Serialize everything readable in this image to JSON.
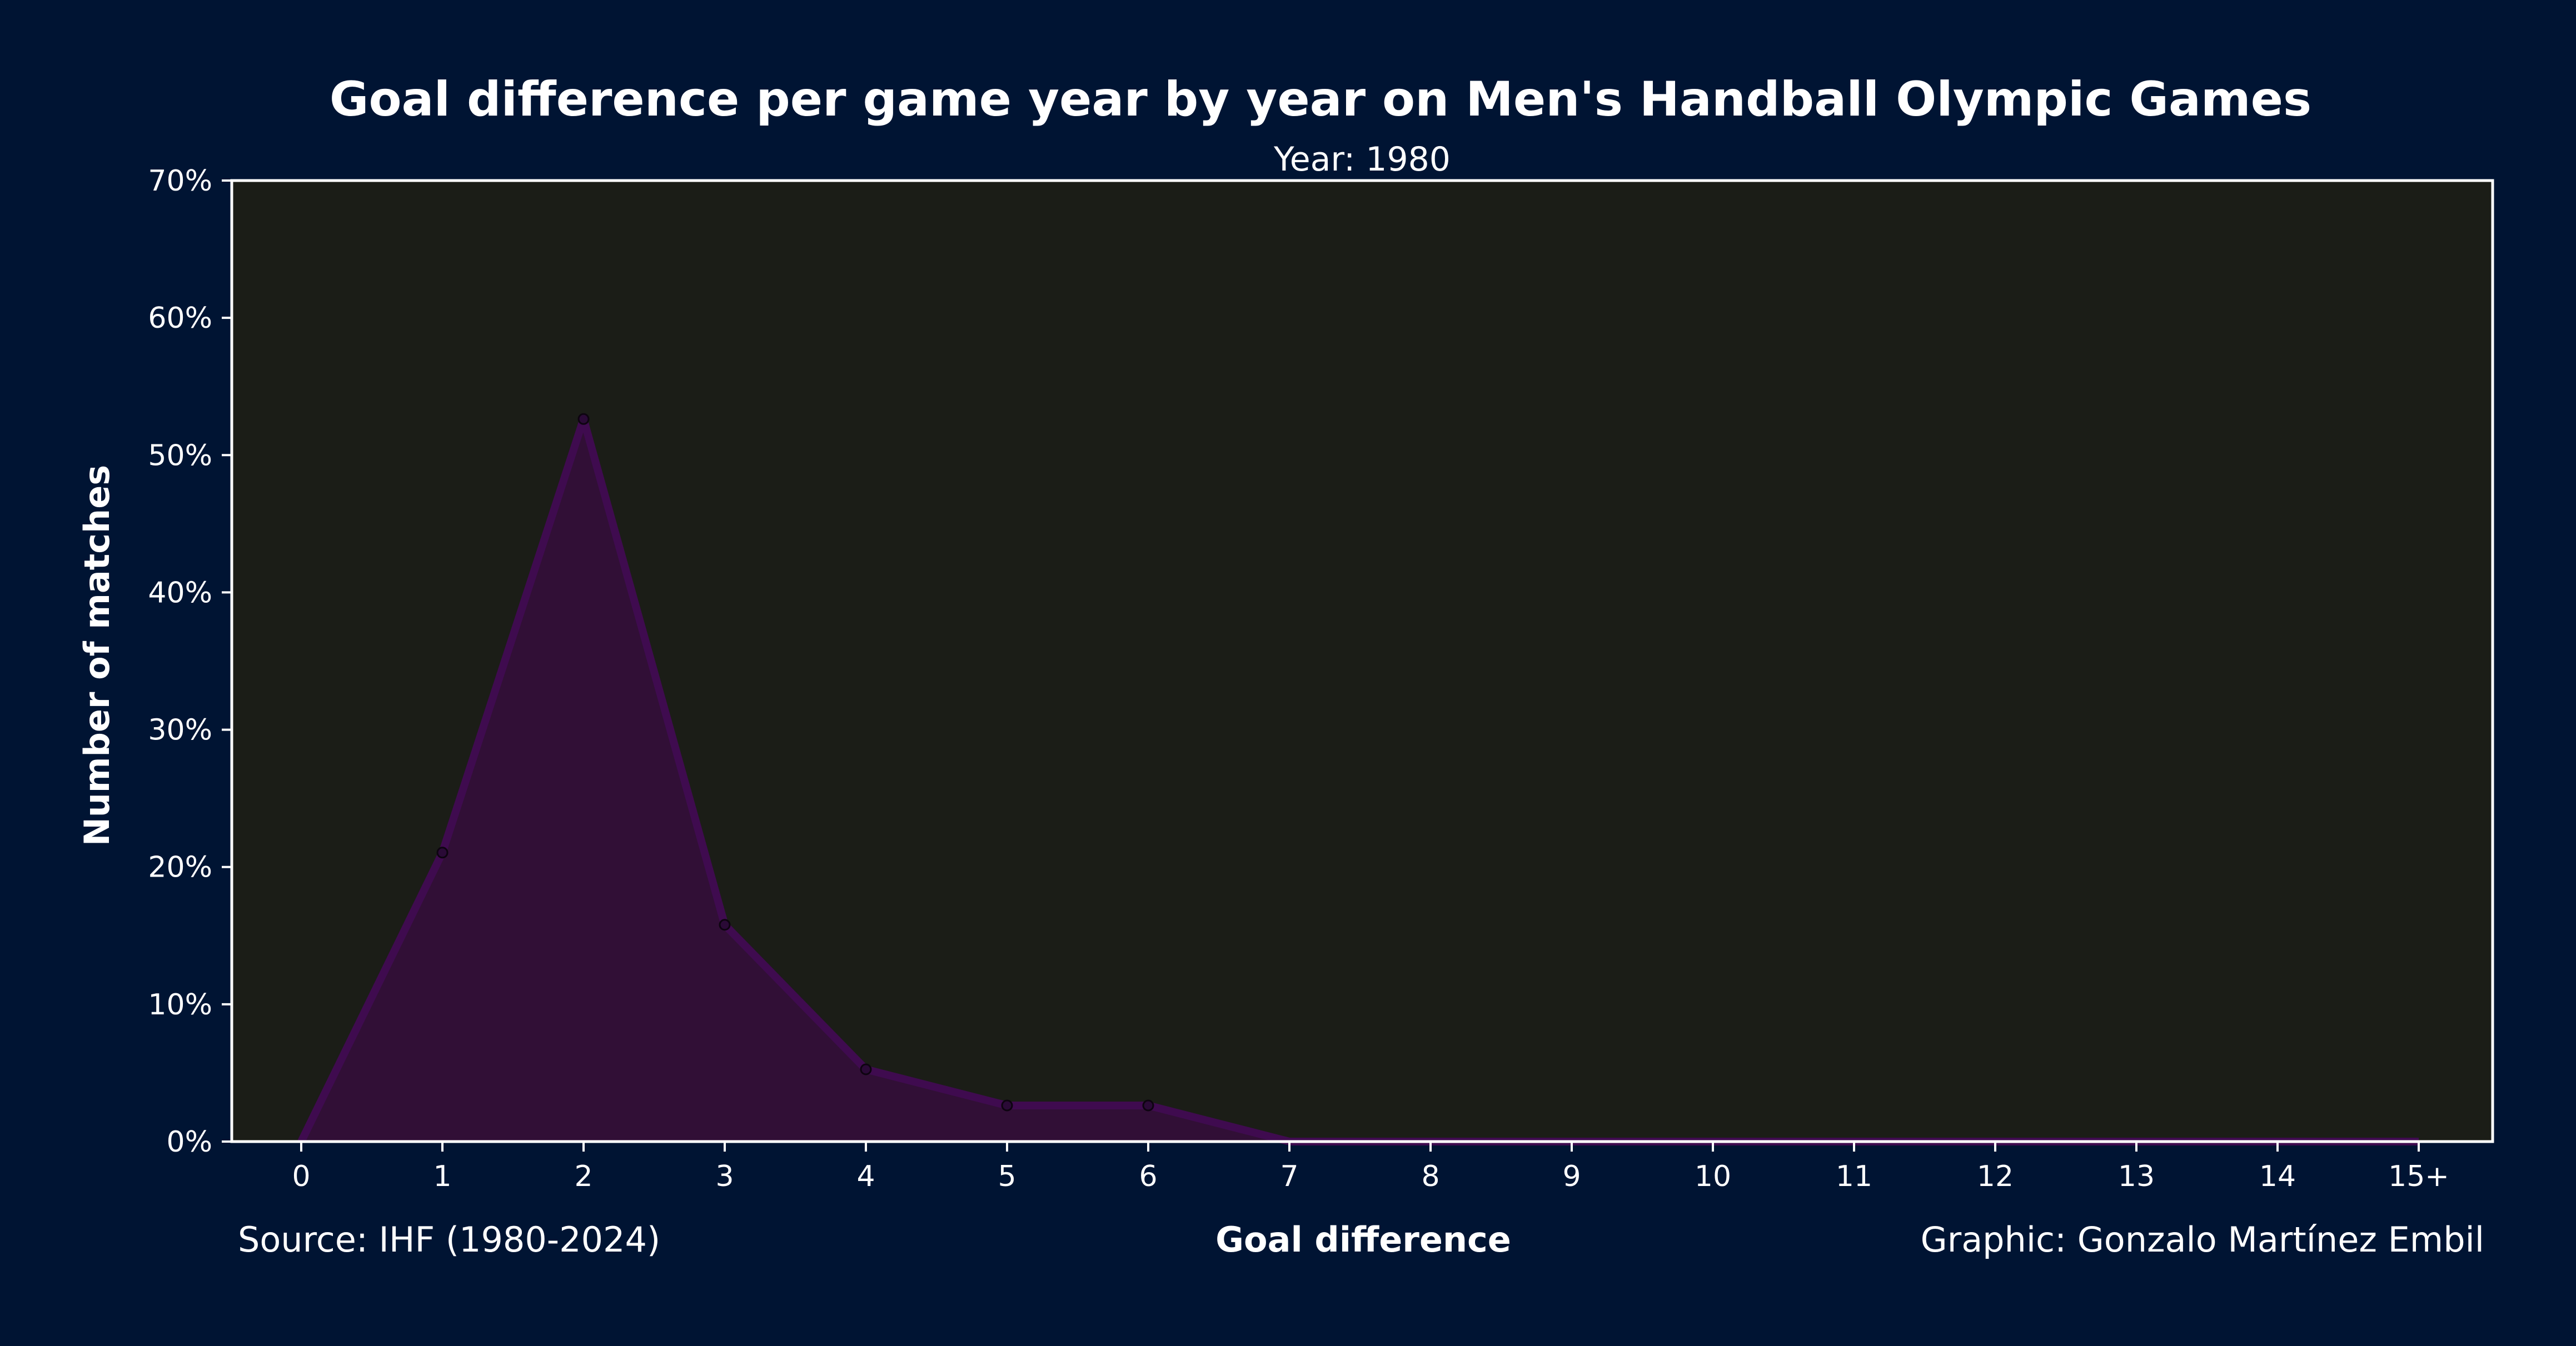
{
  "chart_data": {
    "type": "area",
    "title": "Goal difference per game year by year on Men's Handball Olympic Games",
    "subtitle": "Year: 1980",
    "xlabel": "Goal difference",
    "ylabel": "Number of matches",
    "categories": [
      "0",
      "1",
      "2",
      "3",
      "4",
      "5",
      "6",
      "7",
      "8",
      "9",
      "10",
      "11",
      "12",
      "13",
      "14",
      "15+"
    ],
    "values": [
      0,
      21.05,
      52.63,
      15.79,
      5.26,
      2.63,
      2.63,
      0,
      0,
      0,
      0,
      0,
      0,
      0,
      0,
      0
    ],
    "marked_points": [
      1,
      2,
      3,
      4,
      5,
      6
    ],
    "ylim": [
      0,
      70
    ],
    "yticks": [
      0,
      10,
      20,
      30,
      40,
      50,
      60,
      70
    ],
    "ytick_labels": [
      "0%",
      "10%",
      "20%",
      "30%",
      "40%",
      "50%",
      "60%",
      "70%"
    ],
    "grid": false,
    "source": "Source: IHF (1980-2024)",
    "credit": "Graphic: Gonzalo Martínez Embil",
    "colors": {
      "background": "#001433",
      "plot_background": "#1b1d17",
      "area_fill": "#310f36",
      "line": "#3f0b4f",
      "marker": "#2a0a36",
      "text": "#ffffff",
      "axis": "#ffffff"
    }
  }
}
